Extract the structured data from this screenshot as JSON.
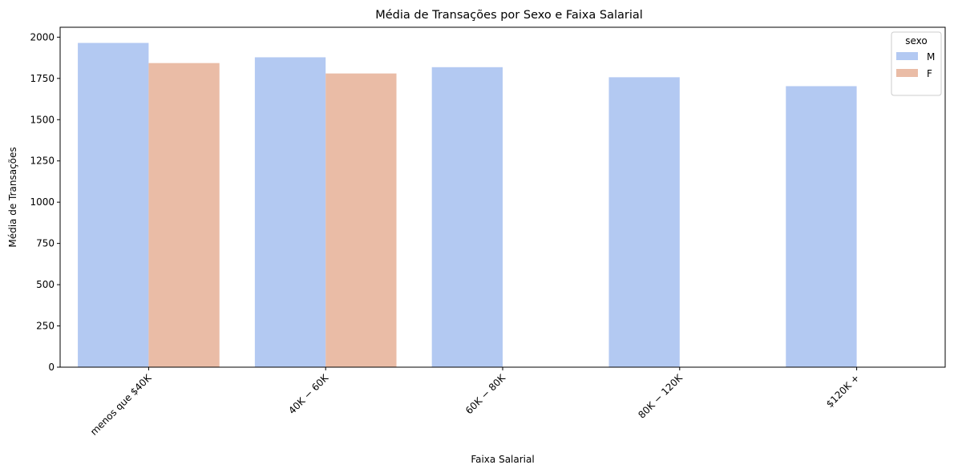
{
  "chart_data": {
    "type": "bar",
    "title": "Média de Transações por Sexo e Faixa Salarial",
    "xlabel": "Faixa Salarial",
    "ylabel": "Média de Transações",
    "categories": [
      "menos que $40K",
      "$40K - $60K",
      "$60K - $80K",
      "$80K - $120K",
      "$120K +"
    ],
    "category_display": [
      "menos que $40K",
      "40K − 60K",
      "60K − 80K",
      "80K − 120K",
      "$120K +"
    ],
    "ylim": [
      0,
      2060
    ],
    "yticks": [
      0,
      250,
      500,
      750,
      1000,
      1250,
      1500,
      1750,
      2000
    ],
    "grid": false,
    "legend_title": "sexo",
    "legend_position": "top-right",
    "series": [
      {
        "name": "M",
        "color": "#b3c9f2",
        "values": [
          1965,
          1878,
          1818,
          1757,
          1703
        ]
      },
      {
        "name": "F",
        "color": "#eabca6",
        "values": [
          1843,
          1780,
          null,
          null,
          null
        ]
      }
    ]
  }
}
